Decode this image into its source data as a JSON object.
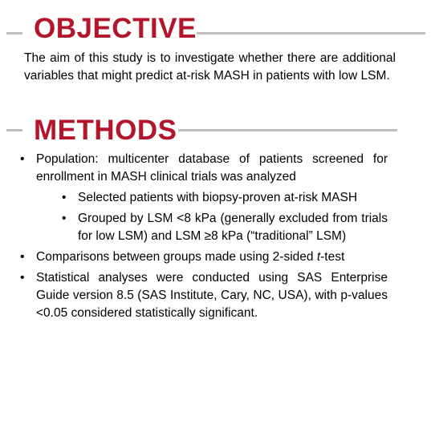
{
  "objective": {
    "title": "OBJECTIVE",
    "text": "The aim of this study is to investigate whether there are additional variables that might predict at-risk MASH in patients with low LSM."
  },
  "methods": {
    "title": "METHODS",
    "items": [
      {
        "text": "Population: multicenter database of patients screened for enrollment in MASH clinical trials was analyzed",
        "subitems": [
          "Selected patients with biopsy-proven at-risk MASH",
          "Grouped by LSM <8 kPa (generally excluded from trials for low LSM) and LSM ≥8 kPa (“traditional” LSM)"
        ]
      },
      {
        "text_parts": [
          "Comparisons between groups made using 2-sided ",
          "t",
          "-test"
        ]
      },
      {
        "text": "Statistical analyses were conducted using SAS Enterprise Guide version 8.5 (SAS Institute, Cary, NC, USA), with p-values <0.05 considered statistically significant."
      }
    ]
  }
}
